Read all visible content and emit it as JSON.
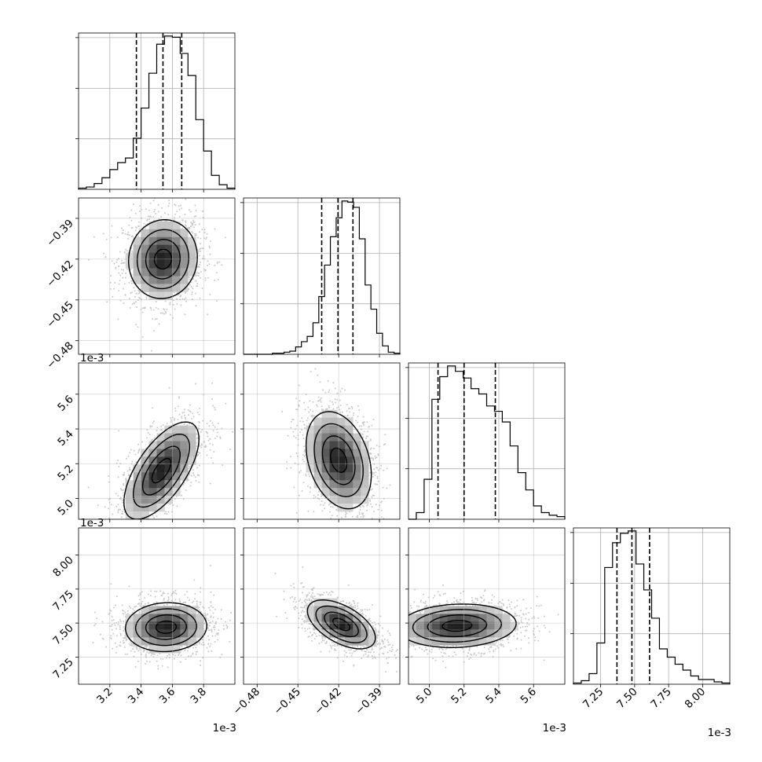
{
  "chart_data": {
    "type": "corner",
    "grid": true,
    "parameters": [
      {
        "scale": 0.001,
        "offset_label": "1e-3",
        "range": [
          3.0,
          4.0
        ],
        "ticks": [
          3.2,
          3.4,
          3.6,
          3.8
        ],
        "tick_labels": [
          "3.2",
          "3.4",
          "3.6",
          "3.8"
        ],
        "quantiles": [
          3.37,
          3.54,
          3.66
        ],
        "hist_counts": [
          1,
          2,
          5,
          10,
          17,
          23,
          27,
          44,
          70,
          100,
          125,
          132,
          131,
          117,
          98,
          60,
          33,
          12,
          4,
          1
        ]
      },
      {
        "scale": 1,
        "offset_label": "",
        "range": [
          -0.49,
          -0.375
        ],
        "ticks": [
          -0.48,
          -0.45,
          -0.42,
          -0.39
        ],
        "tick_labels": [
          "−0.48",
          "−0.45",
          "−0.42",
          "−0.39"
        ],
        "quantiles": [
          -0.4325,
          -0.4205,
          -0.4095
        ],
        "hist_counts": [
          0,
          0,
          0,
          0,
          0,
          1,
          1,
          2,
          3,
          7,
          12,
          17,
          30,
          55,
          85,
          112,
          130,
          146,
          145,
          140,
          110,
          66,
          43,
          20,
          8,
          2,
          1
        ]
      },
      {
        "scale": 0.001,
        "offset_label": "1e-3",
        "range": [
          4.88,
          5.78
        ],
        "ticks": [
          5.0,
          5.2,
          5.4,
          5.6
        ],
        "tick_labels": [
          "5.0",
          "5.2",
          "5.4",
          "5.6"
        ],
        "quantiles": [
          5.05,
          5.2,
          5.38
        ],
        "hist_counts": [
          0,
          5,
          30,
          90,
          107,
          115,
          111,
          106,
          98,
          94,
          85,
          81,
          73,
          55,
          35,
          22,
          10,
          5,
          3,
          2
        ]
      },
      {
        "scale": 0.001,
        "offset_label": "1e-3",
        "range": [
          7.05,
          8.2
        ],
        "ticks": [
          7.25,
          7.5,
          7.75,
          8.0
        ],
        "tick_labels": [
          "7.25",
          "7.50",
          "7.75",
          "8.00"
        ],
        "quantiles": [
          7.37,
          7.48,
          7.61
        ],
        "hist_counts": [
          1,
          3,
          9,
          35,
          99,
          120,
          128,
          130,
          102,
          80,
          56,
          30,
          23,
          17,
          12,
          7,
          4,
          4,
          2,
          1
        ]
      }
    ],
    "pairs": [
      {
        "x": 0,
        "y": 1,
        "center": [
          3.54,
          -0.42
        ],
        "sd": [
          0.11,
          0.0145
        ],
        "corr": 0.05
      },
      {
        "x": 0,
        "y": 2,
        "center": [
          3.53,
          5.16
        ],
        "sd": [
          0.12,
          0.14
        ],
        "corr": 0.65
      },
      {
        "x": 1,
        "y": 2,
        "center": [
          -0.42,
          5.22
        ],
        "sd": [
          0.012,
          0.14
        ],
        "corr": -0.3
      },
      {
        "x": 0,
        "y": 3,
        "center": [
          3.56,
          7.47
        ],
        "sd": [
          0.13,
          0.09
        ],
        "corr": 0.05
      },
      {
        "x": 1,
        "y": 3,
        "center": [
          -0.418,
          7.49
        ],
        "sd": [
          0.0125,
          0.09
        ],
        "corr": -0.55
      },
      {
        "x": 2,
        "y": 3,
        "center": [
          5.16,
          7.48
        ],
        "sd": [
          0.17,
          0.08
        ],
        "corr": 0.1
      }
    ],
    "contour_levels_sigma": [
      0.5,
      1.0,
      1.5,
      2.0
    ]
  }
}
